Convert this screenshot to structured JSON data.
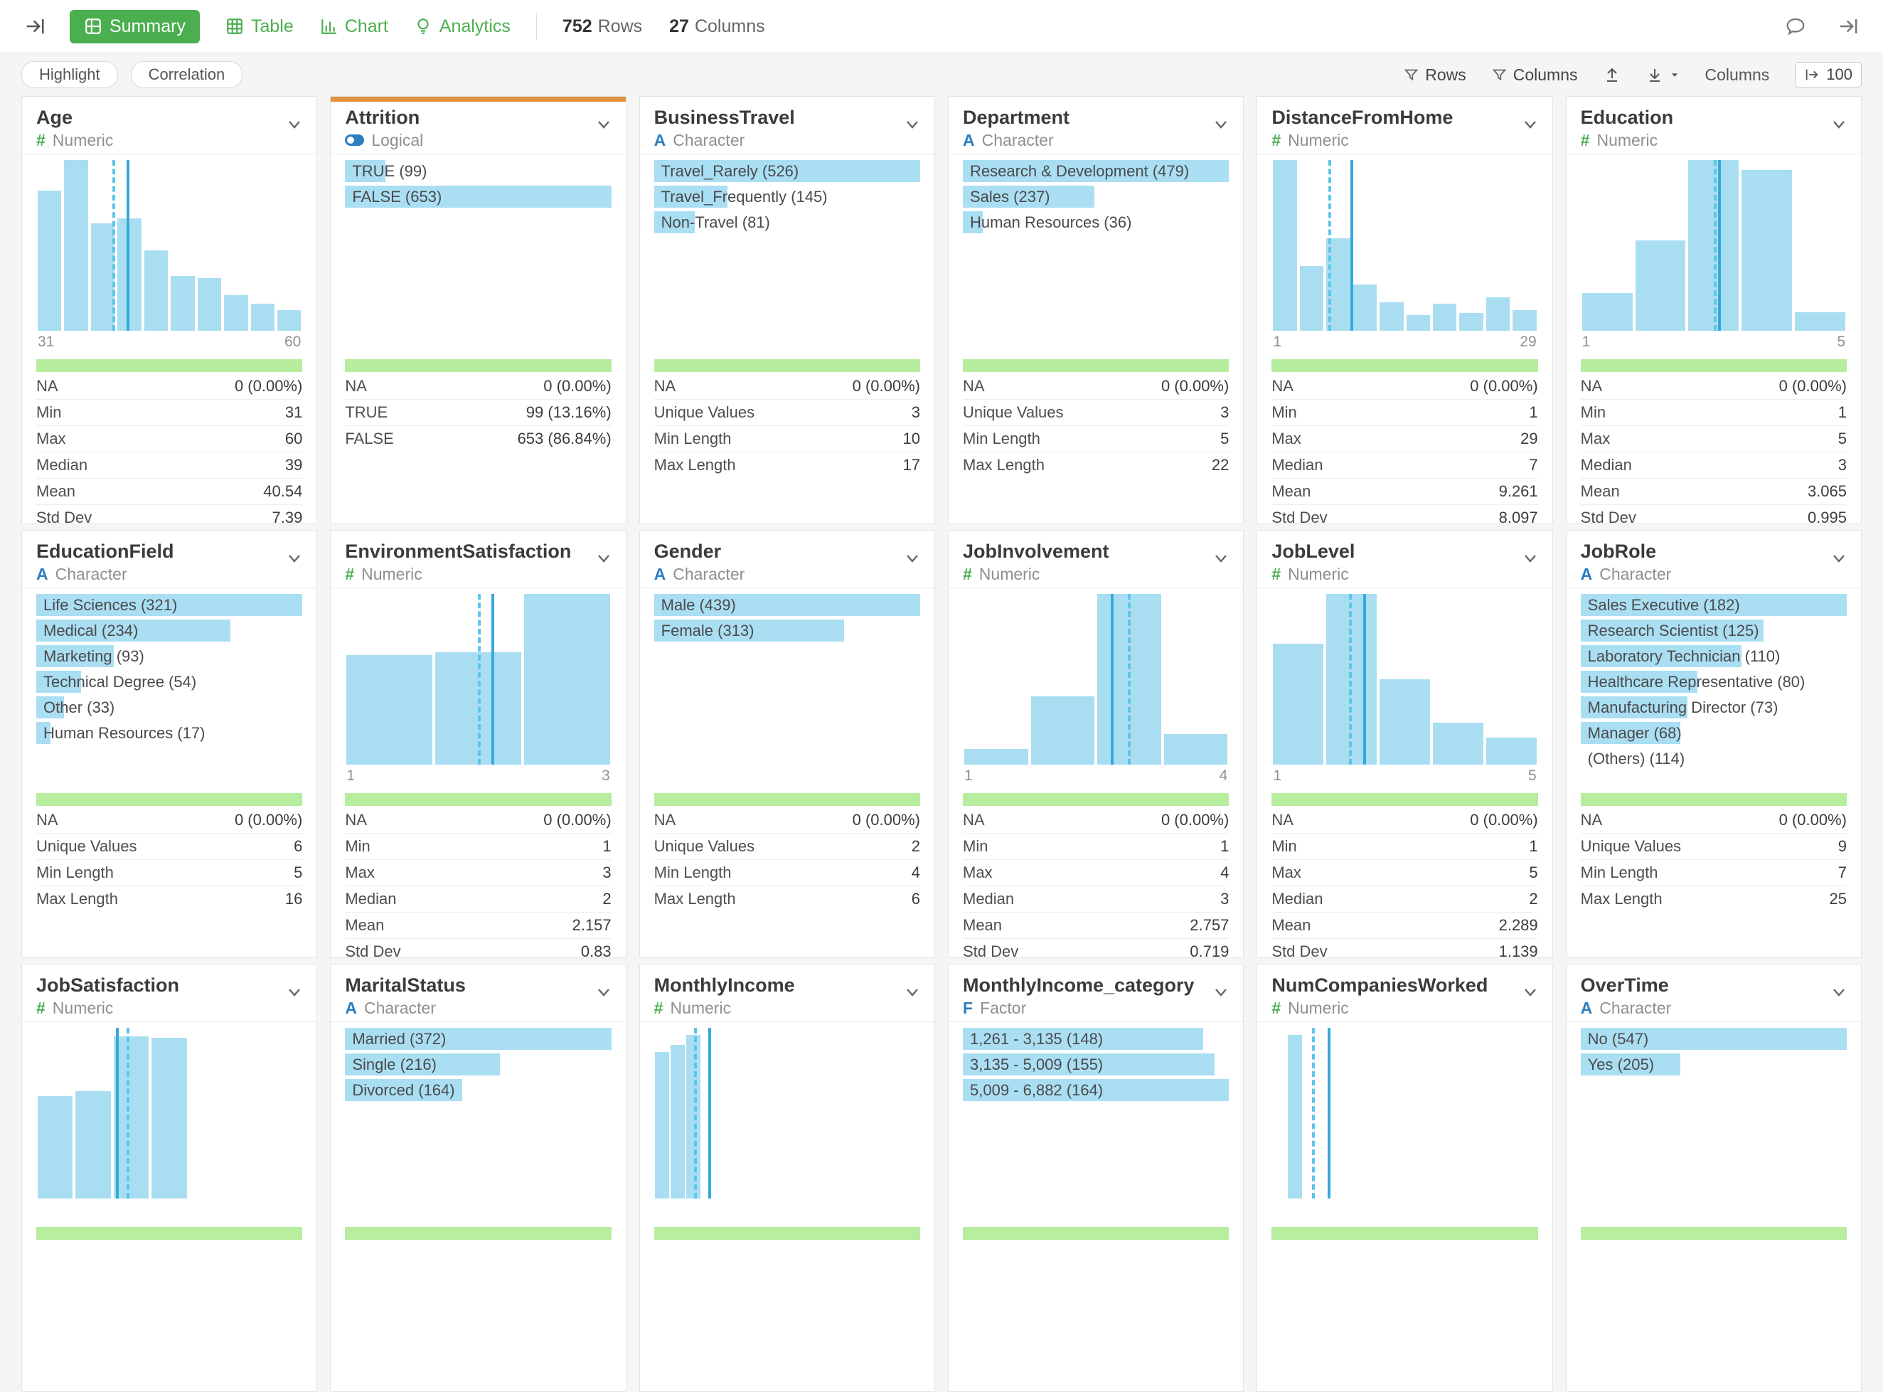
{
  "toolbar": {
    "tabs": [
      {
        "label": "Summary",
        "active": true
      },
      {
        "label": "Table",
        "active": false
      },
      {
        "label": "Chart",
        "active": false
      },
      {
        "label": "Analytics",
        "active": false
      }
    ],
    "rows_count": "752",
    "rows_label": "Rows",
    "cols_count": "27",
    "cols_label": "Columns"
  },
  "subbar": {
    "highlight_label": "Highlight",
    "correlation_label": "Correlation",
    "rows_filter_label": "Rows",
    "columns_filter_label": "Columns",
    "columns_label": "Columns",
    "columns_limit": "100"
  },
  "colors": {
    "accent_green": "#4bae4f",
    "bar_blue": "#a9def2",
    "line_blue": "#36a9d9",
    "complete_green": "#b7ed9f",
    "selected_orange": "#e0923f",
    "type_blue": "#2d7dc1"
  },
  "cards": [
    {
      "title": "Age",
      "type_label": "Numeric",
      "kind": "numeric",
      "selected": false,
      "viz": {
        "type": "hist",
        "bars": [
          0.82,
          1,
          0.63,
          0.66,
          0.47,
          0.32,
          0.31,
          0.21,
          0.16,
          0.12
        ],
        "dashed": 0.287,
        "solid": 0.338,
        "axis": [
          "31",
          "60"
        ],
        "fine": false
      },
      "stats": [
        [
          "NA",
          "0 (0.00%)"
        ],
        [
          "Min",
          "31"
        ],
        [
          "Max",
          "60"
        ],
        [
          "Median",
          "39"
        ],
        [
          "Mean",
          "40.54"
        ],
        [
          "Std Dev",
          "7.39"
        ]
      ]
    },
    {
      "title": "Attrition",
      "type_label": "Logical",
      "kind": "logical",
      "selected": true,
      "viz": {
        "type": "cats",
        "items": [
          [
            "TRUE (99)",
            0.152
          ],
          [
            "FALSE (653)",
            1
          ]
        ]
      },
      "stats": [
        [
          "NA",
          "0 (0.00%)"
        ],
        [
          "TRUE",
          "99 (13.16%)"
        ],
        [
          "FALSE",
          "653 (86.84%)"
        ]
      ]
    },
    {
      "title": "BusinessTravel",
      "type_label": "Character",
      "kind": "character",
      "selected": false,
      "viz": {
        "type": "cats",
        "items": [
          [
            "Travel_Rarely (526)",
            1
          ],
          [
            "Travel_Frequently (145)",
            0.276
          ],
          [
            "Non-Travel (81)",
            0.154
          ]
        ]
      },
      "stats": [
        [
          "NA",
          "0 (0.00%)"
        ],
        [
          "Unique Values",
          "3"
        ],
        [
          "Min Length",
          "10"
        ],
        [
          "Max Length",
          "17"
        ]
      ]
    },
    {
      "title": "Department",
      "type_label": "Character",
      "kind": "character",
      "selected": false,
      "viz": {
        "type": "cats",
        "items": [
          [
            "Research & Development (479)",
            1
          ],
          [
            "Sales (237)",
            0.495
          ],
          [
            "Human Resources (36)",
            0.075
          ]
        ]
      },
      "stats": [
        [
          "NA",
          "0 (0.00%)"
        ],
        [
          "Unique Values",
          "3"
        ],
        [
          "Min Length",
          "5"
        ],
        [
          "Max Length",
          "22"
        ]
      ]
    },
    {
      "title": "DistanceFromHome",
      "type_label": "Numeric",
      "kind": "numeric",
      "selected": false,
      "viz": {
        "type": "hist",
        "bars": [
          1,
          0.38,
          0.54,
          0.27,
          0.165,
          0.09,
          0.16,
          0.105,
          0.195,
          0.12
        ],
        "dashed": 0.214,
        "solid": 0.295,
        "axis": [
          "1",
          "29"
        ],
        "fine": false
      },
      "stats": [
        [
          "NA",
          "0 (0.00%)"
        ],
        [
          "Min",
          "1"
        ],
        [
          "Max",
          "29"
        ],
        [
          "Median",
          "7"
        ],
        [
          "Mean",
          "9.261"
        ],
        [
          "Std Dev",
          "8.097"
        ]
      ]
    },
    {
      "title": "Education",
      "type_label": "Numeric",
      "kind": "numeric",
      "selected": false,
      "viz": {
        "type": "hist",
        "bars": [
          0.22,
          0.53,
          1,
          0.94,
          0.11
        ],
        "dashed": 0.5,
        "solid": 0.517,
        "axis": [
          "1",
          "5"
        ],
        "fine": false
      },
      "stats": [
        [
          "NA",
          "0 (0.00%)"
        ],
        [
          "Min",
          "1"
        ],
        [
          "Max",
          "5"
        ],
        [
          "Median",
          "3"
        ],
        [
          "Mean",
          "3.065"
        ],
        [
          "Std Dev",
          "0.995"
        ]
      ]
    },
    {
      "title": "EducationField",
      "type_label": "Character",
      "kind": "character",
      "selected": false,
      "viz": {
        "type": "cats",
        "items": [
          [
            "Life Sciences (321)",
            1
          ],
          [
            "Medical (234)",
            0.729
          ],
          [
            "Marketing (93)",
            0.29
          ],
          [
            "Technical Degree (54)",
            0.168
          ],
          [
            "Other (33)",
            0.103
          ],
          [
            "Human Resources (17)",
            0.053
          ]
        ]
      },
      "stats": [
        [
          "NA",
          "0 (0.00%)"
        ],
        [
          "Unique Values",
          "6"
        ],
        [
          "Min Length",
          "5"
        ],
        [
          "Max Length",
          "16"
        ]
      ]
    },
    {
      "title": "EnvironmentSatisfaction",
      "type_label": "Numeric",
      "kind": "numeric",
      "selected": false,
      "viz": {
        "type": "hist",
        "bars": [
          0.64,
          0.66,
          1
        ],
        "dashed": 0.5,
        "solid": 0.55,
        "axis": [
          "1",
          "3"
        ],
        "fine": false
      },
      "stats": [
        [
          "NA",
          "0 (0.00%)"
        ],
        [
          "Min",
          "1"
        ],
        [
          "Max",
          "3"
        ],
        [
          "Median",
          "2"
        ],
        [
          "Mean",
          "2.157"
        ],
        [
          "Std Dev",
          "0.83"
        ]
      ]
    },
    {
      "title": "Gender",
      "type_label": "Character",
      "kind": "character",
      "selected": false,
      "viz": {
        "type": "cats",
        "items": [
          [
            "Male (439)",
            1
          ],
          [
            "Female (313)",
            0.713
          ]
        ]
      },
      "stats": [
        [
          "NA",
          "0 (0.00%)"
        ],
        [
          "Unique Values",
          "2"
        ],
        [
          "Min Length",
          "4"
        ],
        [
          "Max Length",
          "6"
        ]
      ]
    },
    {
      "title": "JobInvolvement",
      "type_label": "Numeric",
      "kind": "numeric",
      "selected": false,
      "viz": {
        "type": "hist",
        "bars": [
          0.09,
          0.4,
          1,
          0.18
        ],
        "dashed": 0.62,
        "solid": 0.555,
        "axis": [
          "1",
          "4"
        ],
        "fine": false
      },
      "stats": [
        [
          "NA",
          "0 (0.00%)"
        ],
        [
          "Min",
          "1"
        ],
        [
          "Max",
          "4"
        ],
        [
          "Median",
          "3"
        ],
        [
          "Mean",
          "2.757"
        ],
        [
          "Std Dev",
          "0.719"
        ]
      ]
    },
    {
      "title": "JobLevel",
      "type_label": "Numeric",
      "kind": "numeric",
      "selected": false,
      "viz": {
        "type": "hist",
        "bars": [
          0.71,
          1,
          0.5,
          0.245,
          0.16
        ],
        "dashed": 0.29,
        "solid": 0.345,
        "axis": [
          "1",
          "5"
        ],
        "fine": false
      },
      "stats": [
        [
          "NA",
          "0 (0.00%)"
        ],
        [
          "Min",
          "1"
        ],
        [
          "Max",
          "5"
        ],
        [
          "Median",
          "2"
        ],
        [
          "Mean",
          "2.289"
        ],
        [
          "Std Dev",
          "1.139"
        ]
      ]
    },
    {
      "title": "JobRole",
      "type_label": "Character",
      "kind": "character",
      "selected": false,
      "viz": {
        "type": "cats",
        "items": [
          [
            "Sales Executive (182)",
            1
          ],
          [
            "Research Scientist (125)",
            0.687
          ],
          [
            "Laboratory Technician (110)",
            0.604
          ],
          [
            "Healthcare Representative (80)",
            0.44
          ],
          [
            "Manufacturing Director (73)",
            0.401
          ],
          [
            "Manager (68)",
            0.374
          ],
          [
            "(Others) (114)",
            0
          ]
        ]
      },
      "stats": [
        [
          "NA",
          "0 (0.00%)"
        ],
        [
          "Unique Values",
          "9"
        ],
        [
          "Min Length",
          "7"
        ],
        [
          "Max Length",
          "25"
        ]
      ]
    },
    {
      "title": "JobSatisfaction",
      "type_label": "Numeric",
      "kind": "numeric",
      "selected": false,
      "viz": {
        "type": "hist",
        "bars": [
          0.6,
          0.63,
          0.95,
          0.94,
          0,
          0,
          0
        ],
        "dashed": 0.34,
        "solid": 0.3,
        "axis": null,
        "fine": false
      },
      "stats": []
    },
    {
      "title": "MaritalStatus",
      "type_label": "Character",
      "kind": "character",
      "selected": false,
      "viz": {
        "type": "cats",
        "items": [
          [
            "Married (372)",
            1
          ],
          [
            "Single (216)",
            0.581
          ],
          [
            "Divorced (164)",
            0.441
          ]
        ]
      },
      "stats": []
    },
    {
      "title": "MonthlyIncome",
      "type_label": "Numeric",
      "kind": "numeric",
      "selected": false,
      "viz": {
        "type": "hist",
        "bars": [
          0.86,
          0.9,
          0.96,
          0,
          0,
          0,
          0,
          0,
          0,
          0,
          0,
          0,
          0,
          0,
          0,
          0,
          0
        ],
        "dashed": 0.15,
        "solid": 0.205,
        "axis": null,
        "fine": true
      },
      "stats": []
    },
    {
      "title": "MonthlyIncome_category",
      "type_label": "Factor",
      "kind": "factor",
      "selected": false,
      "viz": {
        "type": "cats",
        "items": [
          [
            "1,261 - 3,135 (148)",
            0.902
          ],
          [
            "3,135 - 5,009 (155)",
            0.945
          ],
          [
            "5,009 - 6,882 (164)",
            1
          ]
        ]
      },
      "stats": []
    },
    {
      "title": "NumCompaniesWorked",
      "type_label": "Numeric",
      "kind": "numeric",
      "selected": false,
      "viz": {
        "type": "hist",
        "bars": [
          0,
          0.96,
          0,
          0,
          0,
          0,
          0,
          0,
          0,
          0,
          0,
          0,
          0,
          0,
          0,
          0,
          0
        ],
        "dashed": 0.152,
        "solid": 0.21,
        "axis": null,
        "fine": true
      },
      "stats": []
    },
    {
      "title": "OverTime",
      "type_label": "Character",
      "kind": "character",
      "selected": false,
      "viz": {
        "type": "cats",
        "items": [
          [
            "No (547)",
            1
          ],
          [
            "Yes (205)",
            0.375
          ]
        ]
      },
      "stats": []
    }
  ]
}
